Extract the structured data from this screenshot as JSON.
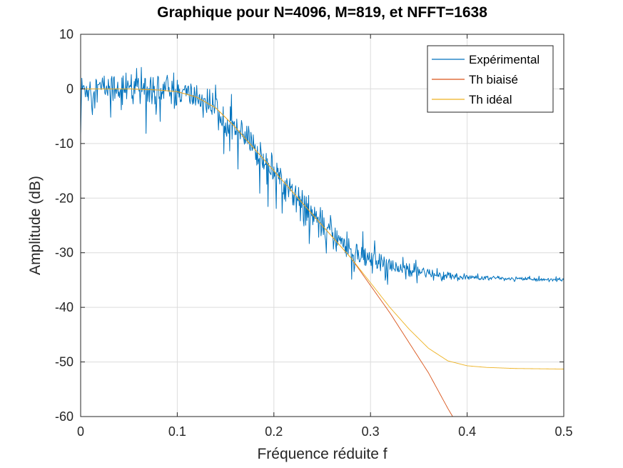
{
  "chart_data": {
    "type": "line",
    "title": "Graphique pour N=4096, M=819, et NFFT=1638",
    "xlabel": "Fréquence réduite f",
    "ylabel": "Amplitude (dB)",
    "xlim": [
      0,
      0.5
    ],
    "ylim": [
      -60,
      10
    ],
    "xticks": [
      0,
      0.1,
      0.2,
      0.3,
      0.4,
      0.5
    ],
    "xtick_labels": [
      "0",
      "0.1",
      "0.2",
      "0.3",
      "0.4",
      "0.5"
    ],
    "yticks": [
      10,
      0,
      -10,
      -20,
      -30,
      -40,
      -50,
      -60
    ],
    "ytick_labels": [
      "10",
      "0",
      "-10",
      "-20",
      "-30",
      "-40",
      "-50",
      "-60"
    ],
    "grid": true,
    "legend_position": "top-right",
    "series": [
      {
        "name": "Expérimental",
        "color": "#0072BD",
        "noisy": true,
        "x": [
          0.0,
          0.02,
          0.05,
          0.08,
          0.1,
          0.12,
          0.14,
          0.16,
          0.18,
          0.2,
          0.22,
          0.24,
          0.26,
          0.28,
          0.3,
          0.31,
          0.32,
          0.34,
          0.36,
          0.38,
          0.4,
          0.45,
          0.5
        ],
        "y": [
          0.0,
          0.2,
          0.3,
          0.2,
          -0.5,
          -1.5,
          -3.5,
          -7.0,
          -11.0,
          -15.0,
          -19.0,
          -23.0,
          -26.5,
          -29.5,
          -31.5,
          -32.2,
          -32.7,
          -33.3,
          -33.8,
          -34.2,
          -34.5,
          -34.8,
          -35.0
        ]
      },
      {
        "name": "Th biaisé",
        "color": "#D95319",
        "x": [
          0.0,
          0.05,
          0.08,
          0.1,
          0.12,
          0.14,
          0.16,
          0.18,
          0.2,
          0.22,
          0.24,
          0.26,
          0.28,
          0.3,
          0.32,
          0.34,
          0.36,
          0.38,
          0.385
        ],
        "y": [
          0.0,
          0.0,
          -0.2,
          -0.5,
          -1.5,
          -3.5,
          -7.0,
          -11.0,
          -15.0,
          -19.0,
          -23.0,
          -27.0,
          -31.0,
          -36.0,
          -41.0,
          -46.5,
          -52.0,
          -58.5,
          -60.0
        ]
      },
      {
        "name": "Th idéal",
        "color": "#EDB120",
        "x": [
          0.0,
          0.05,
          0.08,
          0.1,
          0.12,
          0.14,
          0.16,
          0.18,
          0.2,
          0.22,
          0.24,
          0.26,
          0.28,
          0.3,
          0.32,
          0.34,
          0.36,
          0.38,
          0.4,
          0.42,
          0.45,
          0.5
        ],
        "y": [
          0.0,
          0.0,
          -0.2,
          -0.5,
          -1.5,
          -3.5,
          -7.0,
          -11.0,
          -15.0,
          -19.0,
          -23.0,
          -27.0,
          -31.0,
          -35.5,
          -40.0,
          -44.0,
          -47.5,
          -49.8,
          -50.7,
          -51.0,
          -51.2,
          -51.3
        ]
      }
    ]
  }
}
